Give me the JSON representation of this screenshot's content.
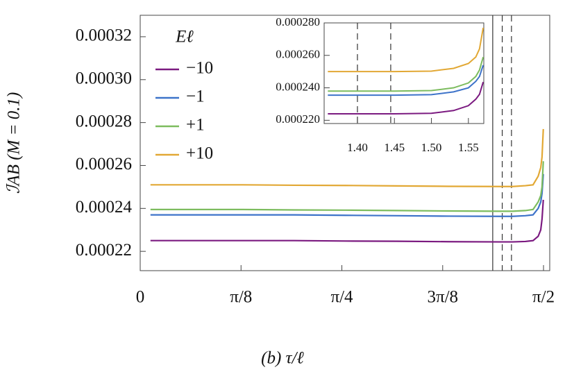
{
  "chart_data": [
    {
      "type": "line",
      "x_label": "(b) τ/ℓ",
      "y_label": "ℐAB (M = 0.1)",
      "legend_title": "Eℓ",
      "legend": "upper left",
      "x": [
        0.04,
        0.2,
        0.4,
        0.6,
        0.8,
        1.0,
        1.2,
        1.4,
        1.45,
        1.5,
        1.53,
        1.55,
        1.56,
        1.565,
        1.57
      ],
      "series": [
        {
          "name": "−10",
          "color": "#7b1a80",
          "values": [
            0.000225,
            0.000225,
            0.000225,
            0.000225,
            0.0002248,
            0.0002247,
            0.0002245,
            0.0002244,
            0.0002244,
            0.0002246,
            0.000225,
            0.000227,
            0.00023,
            0.000235,
            0.000244
          ]
        },
        {
          "name": "−1",
          "color": "#3d73c9",
          "values": [
            0.000237,
            0.000237,
            0.000237,
            0.000237,
            0.0002368,
            0.0002366,
            0.0002364,
            0.0002363,
            0.0002363,
            0.0002366,
            0.000237,
            0.00024,
            0.000243,
            0.000247,
            0.000256
          ]
        },
        {
          "name": "+1",
          "color": "#7cbc5e",
          "values": [
            0.0002395,
            0.0002395,
            0.0002395,
            0.0002393,
            0.0002392,
            0.000239,
            0.0002388,
            0.0002387,
            0.0002387,
            0.000239,
            0.0002395,
            0.000243,
            0.000246,
            0.00025,
            0.000262
          ]
        },
        {
          "name": "+10",
          "color": "#e2a834",
          "values": [
            0.000251,
            0.000251,
            0.000251,
            0.0002508,
            0.0002507,
            0.0002505,
            0.0002503,
            0.0002502,
            0.0002502,
            0.0002506,
            0.000251,
            0.000255,
            0.000259,
            0.000264,
            0.000277
          ]
        }
      ],
      "xlim": [
        0,
        1.595
      ],
      "xticks": [
        0,
        {
          "value": 0.3927,
          "label": "π/8"
        },
        {
          "value": 0.7854,
          "label": "π/4"
        },
        {
          "value": 1.1781,
          "label": "3π/8"
        },
        {
          "value": 1.5708,
          "label": "π/2"
        }
      ],
      "ylim": [
        0.000211,
        0.00033
      ],
      "yticks": [
        0.00022,
        0.00024,
        0.00026,
        0.00028,
        {
          "value": 0.0003,
          "label": "0.00030"
        },
        0.00032
      ],
      "vlines": [
        {
          "x": 1.373,
          "style": "solid"
        },
        {
          "x": 1.41,
          "style": "dashed"
        },
        {
          "x": 1.446,
          "style": "dashed"
        }
      ]
    },
    {
      "type": "line",
      "x": [
        1.36,
        1.4,
        1.45,
        1.5,
        1.53,
        1.55,
        1.56,
        1.565,
        1.57
      ],
      "series": [
        {
          "color": "#7b1a80",
          "values": [
            0.000224,
            0.000224,
            0.000224,
            0.0002243,
            0.000226,
            0.000229,
            0.000233,
            0.000236,
            0.0002436
          ]
        },
        {
          "color": "#3d73c9",
          "values": [
            0.0002355,
            0.0002355,
            0.0002355,
            0.0002358,
            0.0002375,
            0.00024,
            0.000244,
            0.000247,
            0.000254
          ]
        },
        {
          "color": "#7cbc5e",
          "values": [
            0.000238,
            0.000238,
            0.000238,
            0.0002383,
            0.00024,
            0.000243,
            0.000247,
            0.000251,
            0.000259
          ]
        },
        {
          "color": "#e2a834",
          "values": [
            0.00025,
            0.00025,
            0.00025,
            0.0002503,
            0.000252,
            0.000255,
            0.000259,
            0.000264,
            0.000277
          ]
        }
      ],
      "xlim": [
        1.355,
        1.5708
      ],
      "xticks": [
        {
          "value": 1.4,
          "label": "1.40"
        },
        1.45,
        {
          "value": 1.5,
          "label": "1.50"
        },
        1.55
      ],
      "ylim": [
        0.000218,
        0.00028
      ],
      "yticks": [
        {
          "value": 0.00022,
          "label": "0.000220"
        },
        {
          "value": 0.00024,
          "label": "0.000240"
        },
        {
          "value": 0.00026,
          "label": "0.000260"
        },
        {
          "value": 0.00028,
          "label": "0.000280"
        }
      ],
      "vlines": [
        {
          "x": 1.4,
          "style": "dashed"
        },
        {
          "x": 1.445,
          "style": "dashed"
        }
      ]
    }
  ]
}
